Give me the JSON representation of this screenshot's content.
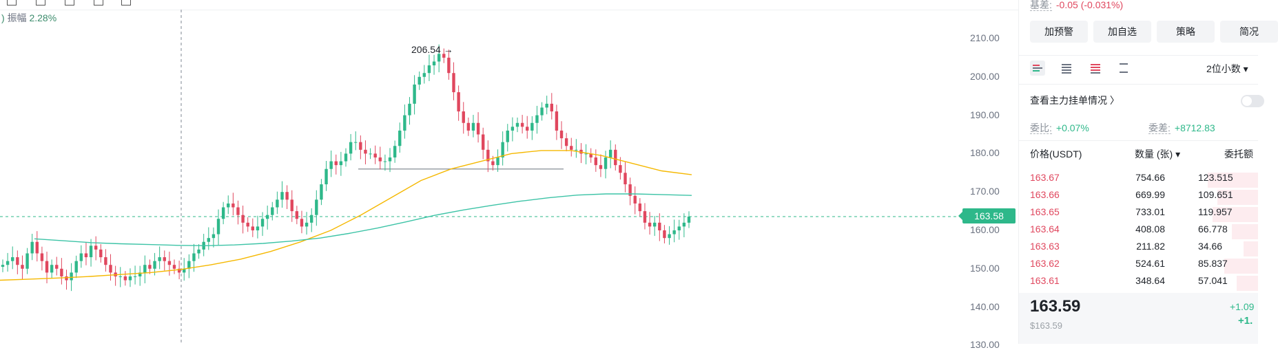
{
  "chart": {
    "amplitude_label": "振幅",
    "amplitude_value": "2.28%",
    "y_ticks": [
      "210.00",
      "200.00",
      "190.00",
      "180.00",
      "170.00",
      "160.00",
      "150.00",
      "140.00",
      "130.00"
    ],
    "current_price": "163.58",
    "high_label": "206.54",
    "colors": {
      "up": "#2eb88a",
      "down": "#e0475e",
      "ma_yellow": "#f5b800",
      "ma_teal": "#3cc3a6"
    }
  },
  "chart_data": {
    "type": "candlestick",
    "y_range": [
      130,
      215
    ],
    "current_price": 163.58,
    "high": 206.54,
    "close_path": [
      151,
      152,
      153,
      151,
      150,
      154,
      157,
      154,
      152,
      149,
      151,
      150,
      148,
      147,
      149,
      152,
      154,
      153,
      156,
      155,
      153,
      151,
      149,
      148,
      148,
      147,
      148,
      148,
      149,
      151,
      150,
      152,
      153,
      152,
      151,
      150,
      149,
      150,
      152,
      154,
      155,
      157,
      158,
      159,
      163,
      166,
      167,
      166,
      164,
      162,
      161,
      160,
      161,
      163,
      164,
      166,
      168,
      170,
      168,
      165,
      163,
      161,
      162,
      164,
      168,
      172,
      176,
      178,
      177,
      178,
      180,
      183,
      183,
      181,
      180,
      180,
      179,
      178,
      178,
      179,
      182,
      186,
      190,
      193,
      198,
      200,
      201,
      203,
      204,
      206,
      205,
      201,
      196,
      191,
      188,
      186,
      188,
      185,
      181,
      178,
      177,
      179,
      183,
      186,
      187,
      188,
      187,
      186,
      188,
      190,
      192,
      193,
      191,
      186,
      184,
      182,
      181,
      181,
      180,
      180,
      179,
      177,
      176,
      179,
      181,
      177,
      175,
      172,
      169,
      167,
      165,
      162,
      161,
      162,
      160,
      158,
      159,
      160,
      161,
      162,
      163.58
    ],
    "series": [
      {
        "name": "",
        "values": [
          147,
          147.3,
          147.6,
          148,
          148.5,
          149,
          149.8,
          151,
          152.5,
          154.5,
          157,
          160,
          164,
          168.5,
          173,
          176,
          178,
          180,
          180.8,
          180.8,
          179.5,
          177.5,
          175.5,
          174.5
        ]
      },
      {
        "name": "",
        "values": [
          157.8,
          157.3,
          156.8,
          156.5,
          156.3,
          156.1,
          156,
          156.2,
          156.6,
          157.2,
          158,
          159.2,
          160.6,
          162.2,
          163.9,
          165.3,
          166.5,
          167.6,
          168.5,
          169.2,
          169.5,
          169.5,
          169.3,
          169.1
        ]
      }
    ]
  },
  "panel": {
    "basis_label": "基差:",
    "basis_value": "-0.05 (-0.031%)",
    "buttons": [
      "加预警",
      "加自选",
      "策略",
      "简况"
    ],
    "decimals": "2位小数 ▾",
    "main_force": "查看主力挂单情况 〉",
    "ratio_label": "委比:",
    "ratio_value": "+0.07%",
    "diff_label": "委差:",
    "diff_value": "+8712.83",
    "headers": {
      "price": "价格(USDT)",
      "qty": "数量 (张) ▾",
      "amount": "委托额"
    },
    "asks": [
      {
        "price": "163.67",
        "qty": "754.66",
        "amount": "123.515"
      },
      {
        "price": "163.66",
        "qty": "669.99",
        "amount": "109.651"
      },
      {
        "price": "163.65",
        "qty": "733.01",
        "amount": "119.957"
      },
      {
        "price": "163.64",
        "qty": "408.08",
        "amount": "66.778"
      },
      {
        "price": "163.63",
        "qty": "211.82",
        "amount": "34.66"
      },
      {
        "price": "163.62",
        "qty": "524.61",
        "amount": "85.837"
      },
      {
        "price": "163.61",
        "qty": "348.64",
        "amount": "57.041"
      }
    ],
    "asks_depth": [
      0.21,
      0.17,
      0.19,
      0.11,
      0.06,
      0.14,
      0.09
    ],
    "last_price": "163.59",
    "last_usd": "$163.59",
    "change1": "+1.09",
    "change2": "+1."
  }
}
